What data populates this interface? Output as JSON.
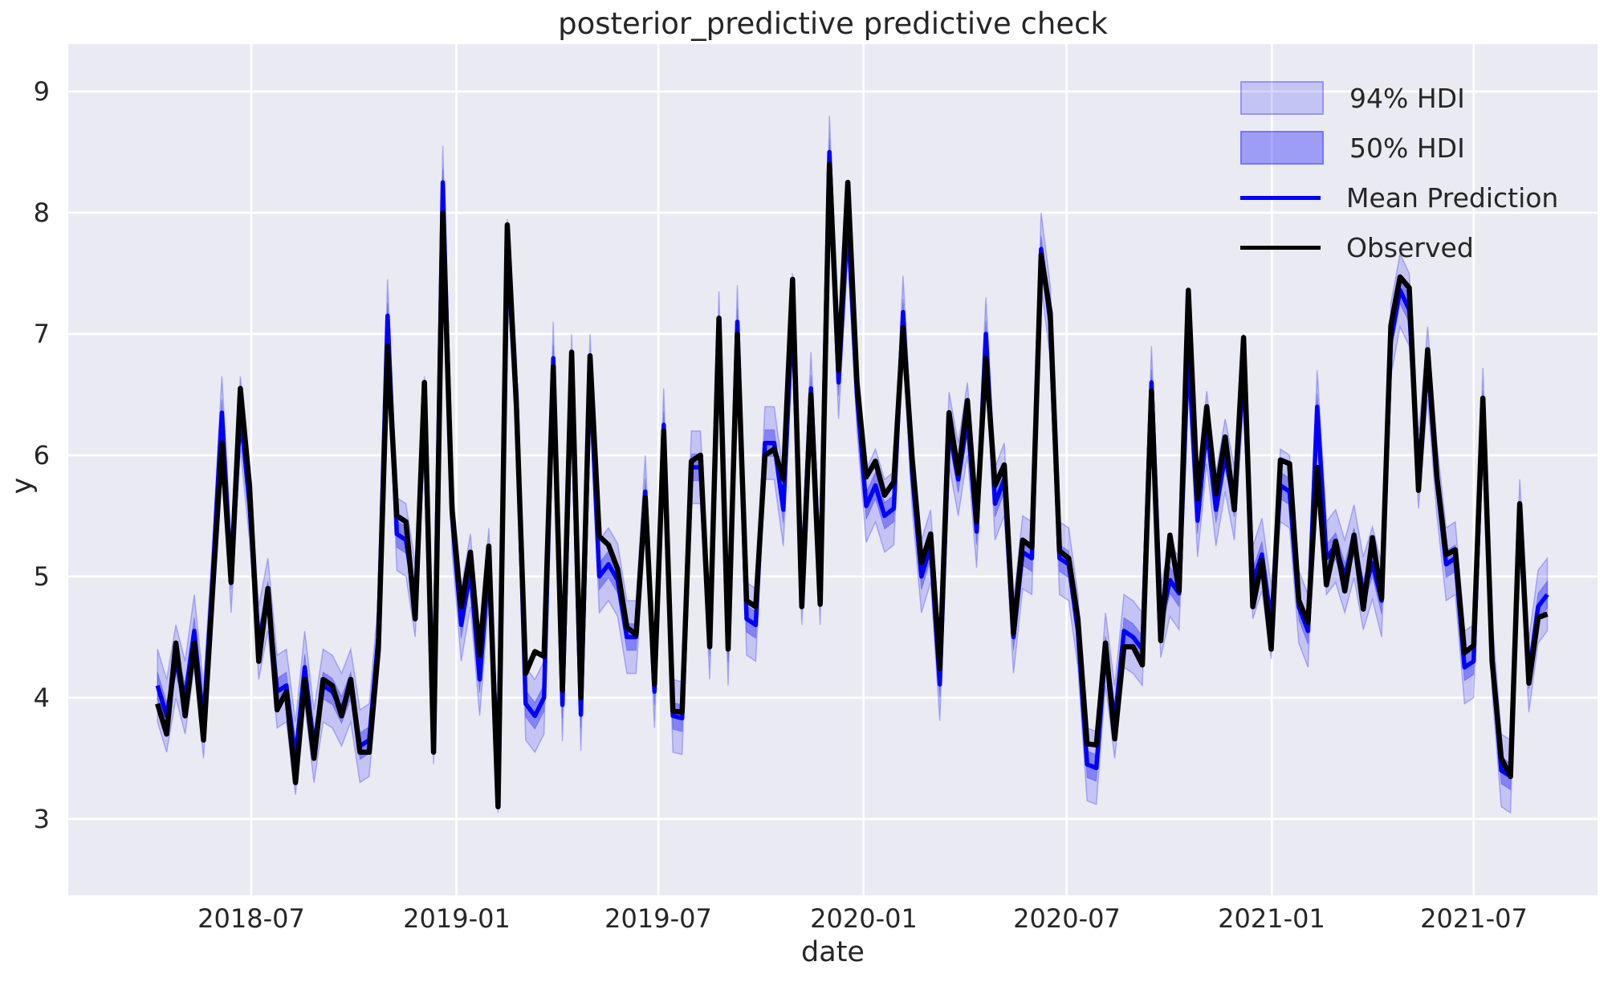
{
  "chart": {
    "title": "posterior_predictive predictive check",
    "xlabel": "date",
    "ylabel": "y",
    "legend": {
      "position": "upper right",
      "items": [
        {
          "label": "94% HDI",
          "type": "patch"
        },
        {
          "label": "50% HDI",
          "type": "patch"
        },
        {
          "label": "Mean Prediction",
          "type": "line"
        },
        {
          "label": "Observed",
          "type": "line"
        }
      ]
    },
    "colors": {
      "figure_bg": "#ffffff",
      "axes_bg": "#eaeaf2",
      "grid": "#ffffff",
      "observed": "#000000",
      "mean": "#0000ff",
      "hdi94_fill": "rgba(0,0,255,0.16)",
      "hdi50_fill": "rgba(0,0,255,0.33)",
      "band_edge": "rgba(0,0,255,0.25)",
      "text": "#262626"
    }
  },
  "chart_data": {
    "type": "line",
    "title": "posterior_predictive predictive check",
    "xlabel": "date",
    "ylabel": "y",
    "grid": true,
    "x_start_date": "2018-04-08",
    "x_end_date": "2021-09-05",
    "cadence": "approx-weekly",
    "n_points": 152,
    "ylim": [
      2.37,
      9.39
    ],
    "xlim_days": [
      -80,
      1291
    ],
    "y_ticks": [
      3,
      4,
      5,
      6,
      7,
      8,
      9
    ],
    "x_ticks": [
      {
        "label": "2018-07",
        "day": 84
      },
      {
        "label": "2019-01",
        "day": 268
      },
      {
        "label": "2019-07",
        "day": 449
      },
      {
        "label": "2020-01",
        "day": 633
      },
      {
        "label": "2020-07",
        "day": 815
      },
      {
        "label": "2021-01",
        "day": 999
      },
      {
        "label": "2021-07",
        "day": 1180
      }
    ],
    "hdi94_halfwidth": 0.3,
    "hdi50_halfwidth": 0.11,
    "series": [
      {
        "name": "Observed",
        "values": [
          3.95,
          3.7,
          4.45,
          3.85,
          4.45,
          3.65,
          4.9,
          6.1,
          4.95,
          6.55,
          5.75,
          4.3,
          4.9,
          3.9,
          4.05,
          3.3,
          4.15,
          3.5,
          4.15,
          4.1,
          3.85,
          4.15,
          3.55,
          3.55,
          4.4,
          6.9,
          5.5,
          5.45,
          4.65,
          6.6,
          3.55,
          8.0,
          5.55,
          4.75,
          5.2,
          4.35,
          5.25,
          3.1,
          7.9,
          6.4,
          4.2,
          4.38,
          4.34,
          6.73,
          4.06,
          6.85,
          4.0,
          6.82,
          5.33,
          5.26,
          5.06,
          4.58,
          4.52,
          5.65,
          4.11,
          6.2,
          3.89,
          3.88,
          5.95,
          6.0,
          4.42,
          7.13,
          4.4,
          7.0,
          4.8,
          4.75,
          6.0,
          6.05,
          5.8,
          7.45,
          4.75,
          6.5,
          4.77,
          8.4,
          6.7,
          8.25,
          6.6,
          5.82,
          5.95,
          5.67,
          5.78,
          7.05,
          5.97,
          5.11,
          5.35,
          4.24,
          6.35,
          5.85,
          6.45,
          5.45,
          6.8,
          5.75,
          5.92,
          4.53,
          5.3,
          5.24,
          7.65,
          7.17,
          5.21,
          5.15,
          4.65,
          3.62,
          3.61,
          4.45,
          3.66,
          4.42,
          4.42,
          4.27,
          6.53,
          4.47,
          5.34,
          4.88,
          7.36,
          5.64,
          6.4,
          5.68,
          6.15,
          5.55,
          6.97,
          4.75,
          5.13,
          4.4,
          5.96,
          5.93,
          4.8,
          4.62,
          5.9,
          4.93,
          5.29,
          4.88,
          5.34,
          4.73,
          5.32,
          4.82,
          7.07,
          7.47,
          7.38,
          5.71,
          6.87,
          5.82,
          5.18,
          5.22,
          4.37,
          4.43,
          6.47,
          4.3,
          3.5,
          3.35,
          5.6,
          4.12,
          4.66,
          4.69
        ]
      },
      {
        "name": "Mean Prediction",
        "values": [
          4.1,
          3.85,
          4.3,
          4.0,
          4.55,
          3.8,
          5.0,
          6.35,
          5.0,
          6.35,
          5.6,
          4.45,
          4.85,
          4.05,
          4.1,
          3.5,
          4.25,
          3.6,
          4.1,
          4.05,
          3.9,
          4.1,
          3.6,
          3.65,
          4.5,
          7.15,
          5.35,
          5.3,
          4.8,
          6.35,
          3.75,
          8.25,
          5.5,
          4.6,
          5.05,
          4.15,
          5.1,
          3.35,
          7.65,
          6.5,
          3.95,
          3.85,
          4.0,
          6.8,
          3.94,
          6.7,
          3.86,
          6.7,
          5.0,
          5.1,
          4.97,
          4.5,
          4.5,
          5.7,
          4.05,
          6.25,
          3.85,
          3.83,
          5.9,
          5.9,
          4.45,
          7.05,
          4.4,
          7.1,
          4.65,
          4.6,
          6.1,
          6.1,
          5.55,
          7.2,
          4.9,
          6.55,
          4.9,
          8.5,
          6.6,
          7.95,
          6.5,
          5.58,
          5.75,
          5.5,
          5.56,
          7.18,
          5.85,
          5.0,
          5.25,
          4.11,
          6.22,
          5.8,
          6.3,
          5.37,
          7.0,
          5.6,
          5.8,
          4.5,
          5.2,
          5.15,
          7.7,
          7.1,
          5.15,
          5.1,
          4.55,
          3.45,
          3.42,
          4.4,
          3.8,
          4.55,
          4.5,
          4.4,
          6.6,
          4.63,
          4.97,
          4.86,
          6.88,
          5.46,
          6.23,
          5.55,
          6.0,
          5.6,
          6.7,
          4.95,
          5.18,
          4.62,
          5.75,
          5.7,
          4.75,
          4.55,
          6.4,
          5.15,
          5.25,
          5.0,
          5.29,
          4.86,
          5.11,
          4.8,
          6.95,
          7.36,
          7.2,
          5.86,
          6.76,
          5.8,
          5.1,
          5.15,
          4.25,
          4.3,
          6.42,
          4.35,
          3.4,
          3.35,
          5.5,
          4.18,
          4.75,
          4.85
        ]
      }
    ]
  }
}
